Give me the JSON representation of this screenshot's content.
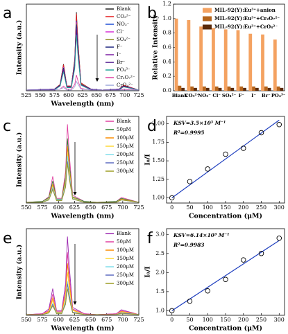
{
  "chart_data": [
    {
      "type": "line",
      "panel": "a",
      "x_label": "Wavelength (nm)",
      "y_label": "Intensity (a.u.)",
      "xlim": [
        525,
        725
      ],
      "xticks": [
        525,
        550,
        575,
        600,
        625,
        650,
        675,
        700,
        725
      ],
      "ylim": [
        0,
        110
      ],
      "x": [
        525,
        575,
        585,
        591,
        597,
        605,
        611,
        614,
        617,
        622,
        640,
        660,
        690,
        698,
        725
      ],
      "series": [
        {
          "name": "Blank",
          "color": "#222222",
          "values": [
            1,
            2,
            8,
            34,
            6,
            6,
            40,
            100,
            60,
            10,
            2,
            1,
            2,
            7,
            1
          ]
        },
        {
          "name": "CO₃²⁻",
          "color": "#e41a1c",
          "values": [
            1,
            2,
            8,
            33,
            6,
            6,
            39,
            98,
            59,
            10,
            2,
            1,
            2,
            7,
            1
          ]
        },
        {
          "name": "NO₃⁻",
          "color": "#1f4fd6",
          "values": [
            1,
            2,
            7,
            30,
            5,
            5,
            36,
            89,
            53,
            9,
            2,
            1,
            2,
            6,
            1
          ]
        },
        {
          "name": "Cl⁻",
          "color": "#d62fd6",
          "values": [
            1,
            2,
            7,
            30,
            5,
            5,
            35,
            87,
            52,
            9,
            2,
            1,
            2,
            6,
            1
          ]
        },
        {
          "name": "SO₄²⁻",
          "color": "#8a8a1a",
          "values": [
            1,
            2,
            7,
            29,
            5,
            5,
            34,
            85,
            51,
            9,
            2,
            1,
            2,
            6,
            1
          ]
        },
        {
          "name": "F⁻",
          "color": "#1a237e",
          "values": [
            1,
            2,
            7,
            29,
            5,
            5,
            34,
            84,
            50,
            8,
            2,
            1,
            2,
            6,
            1
          ]
        },
        {
          "name": "I⁻",
          "color": "#7b1fa2",
          "values": [
            1,
            2,
            6,
            27,
            5,
            5,
            32,
            79,
            47,
            8,
            2,
            1,
            2,
            6,
            1
          ]
        },
        {
          "name": "Br⁻",
          "color": "#4a148c",
          "values": [
            1,
            2,
            6,
            27,
            5,
            5,
            31,
            78,
            47,
            8,
            2,
            1,
            2,
            5,
            1
          ]
        },
        {
          "name": "PO₄³⁻",
          "color": "#26a69a",
          "values": [
            1,
            1,
            6,
            24,
            4,
            4,
            28,
            71,
            43,
            7,
            1,
            1,
            1,
            5,
            1
          ]
        },
        {
          "name": "Cr₂O₇²⁻",
          "color": "#e040a0",
          "values": [
            1,
            1,
            2,
            6,
            2,
            2,
            8,
            20,
            12,
            3,
            1,
            1,
            1,
            2,
            1
          ]
        },
        {
          "name": "CrO₄²⁻",
          "color": "#9fa8da",
          "values": [
            1,
            1,
            2,
            4,
            1,
            1,
            5,
            12,
            8,
            2,
            1,
            1,
            1,
            1,
            1
          ]
        }
      ]
    },
    {
      "type": "bar",
      "panel": "b",
      "y_label": "Relative Intensity",
      "categories": [
        "Blank",
        "CO₃²⁻",
        "NO₃⁻",
        "Cl⁻",
        "SO₄²⁻",
        "F⁻",
        "I⁻",
        "Br⁻",
        "PO₄³⁻"
      ],
      "ylim": [
        0,
        1.2
      ],
      "yticks": [
        {
          "value": 0,
          "label": "0.0"
        },
        0.2,
        0.4,
        0.6,
        0.8,
        {
          "value": 1,
          "label": "1.0"
        },
        1.2
      ],
      "series": [
        {
          "name": "MIL-92(Y):Eu³⁺+anion",
          "color": "#f4a261",
          "values": [
            1.0,
            0.98,
            0.89,
            0.87,
            0.85,
            0.84,
            0.79,
            0.78,
            0.71
          ]
        },
        {
          "name": "MIL-92(Y):Eu³⁺+Cr₂O₇²⁻",
          "color": "#b5651d",
          "values": [
            0.07,
            0.06,
            0.06,
            0.06,
            0.06,
            0.06,
            0.06,
            0.06,
            0.06
          ]
        },
        {
          "name": "MIL-92(Y):Eu³⁺+CrO₄²⁻",
          "color": "#5a2a0a",
          "values": [
            0.04,
            0.04,
            0.04,
            0.04,
            0.04,
            0.04,
            0.04,
            0.04,
            0.04
          ]
        }
      ]
    },
    {
      "type": "line",
      "panel": "c",
      "x_label": "Wavelength (nm)",
      "y_label": "Intensity (a.u.)",
      "xlim": [
        550,
        725
      ],
      "xticks": [
        550,
        575,
        600,
        625,
        650,
        675,
        700,
        725
      ],
      "ylim": [
        0,
        110
      ],
      "x": [
        550,
        575,
        585,
        591,
        597,
        605,
        611,
        614,
        617,
        622,
        640,
        660,
        690,
        698,
        725
      ],
      "series": [
        {
          "name": "Blank",
          "color": "#e040a0",
          "values": [
            1,
            2,
            8,
            34,
            6,
            6,
            40,
            100,
            60,
            10,
            2,
            1,
            2,
            7,
            1
          ]
        },
        {
          "name": "50μM",
          "color": "#2e7d32",
          "values": [
            1,
            2,
            7,
            28,
            5,
            5,
            33,
            82,
            49,
            8,
            2,
            1,
            2,
            6,
            1
          ]
        },
        {
          "name": "100μM",
          "color": "#fb8c00",
          "values": [
            1,
            1,
            6,
            24,
            4,
            4,
            29,
            72,
            43,
            7,
            1,
            1,
            1,
            5,
            1
          ]
        },
        {
          "name": "150μM",
          "color": "#fdd835",
          "values": [
            1,
            1,
            5,
            21,
            4,
            4,
            25,
            63,
            38,
            6,
            1,
            1,
            1,
            4,
            1
          ]
        },
        {
          "name": "200μM",
          "color": "#80deea",
          "values": [
            1,
            1,
            5,
            20,
            4,
            4,
            24,
            60,
            36,
            6,
            1,
            1,
            1,
            4,
            1
          ]
        },
        {
          "name": "250μM",
          "color": "#5c6bc0",
          "values": [
            1,
            1,
            4,
            18,
            3,
            3,
            21,
            53,
            32,
            5,
            1,
            1,
            1,
            4,
            1
          ]
        },
        {
          "name": "300μM",
          "color": "#9e9d24",
          "values": [
            1,
            1,
            4,
            17,
            3,
            3,
            20,
            50,
            30,
            5,
            1,
            1,
            1,
            4,
            1
          ]
        }
      ]
    },
    {
      "type": "scatter",
      "panel": "d",
      "x_label": "Concentration (μM)",
      "y_label": "I₀/I",
      "annotations": [
        "KSV=3.5×10³ M⁻¹",
        "R²=0.9995"
      ],
      "xlim": [
        -15,
        315
      ],
      "xticks": [
        0,
        50,
        100,
        150,
        200,
        250,
        300
      ],
      "ylim": [
        0.93,
        2.1
      ],
      "yticks": [
        {
          "value": 1,
          "label": "1.00"
        },
        1.25,
        {
          "value": 1.5,
          "label": "1.50"
        },
        1.75,
        {
          "value": 2,
          "label": "2.00"
        }
      ],
      "x": [
        0,
        50,
        100,
        150,
        200,
        250,
        300
      ],
      "values": [
        1.0,
        1.22,
        1.39,
        1.59,
        1.67,
        1.88,
        1.99
      ],
      "fit": {
        "color": "#1f3fbf",
        "x": [
          0,
          300
        ],
        "y": [
          1.0,
          2.05
        ]
      }
    },
    {
      "type": "line",
      "panel": "e",
      "x_label": "Wavelength (nm)",
      "y_label": "Intensity (a.u.)",
      "xlim": [
        550,
        725
      ],
      "xticks": [
        550,
        575,
        600,
        625,
        650,
        675,
        700,
        725
      ],
      "ylim": [
        0,
        110
      ],
      "x": [
        550,
        575,
        585,
        591,
        597,
        605,
        611,
        614,
        617,
        622,
        640,
        660,
        690,
        698,
        725
      ],
      "series": [
        {
          "name": "Blank",
          "color": "#9c27b0",
          "values": [
            1,
            2,
            8,
            34,
            6,
            6,
            40,
            100,
            60,
            10,
            2,
            1,
            2,
            7,
            1
          ]
        },
        {
          "name": "50μM",
          "color": "#e040a0",
          "values": [
            1,
            2,
            6,
            27,
            5,
            5,
            32,
            80,
            48,
            8,
            2,
            1,
            2,
            6,
            1
          ]
        },
        {
          "name": "100μM",
          "color": "#fb8c00",
          "values": [
            1,
            1,
            5,
            22,
            4,
            4,
            26,
            66,
            40,
            7,
            1,
            1,
            1,
            5,
            1
          ]
        },
        {
          "name": "150μM",
          "color": "#fdd835",
          "values": [
            1,
            1,
            4,
            19,
            3,
            3,
            22,
            55,
            33,
            6,
            1,
            1,
            1,
            4,
            1
          ]
        },
        {
          "name": "200μM",
          "color": "#80deea",
          "values": [
            1,
            1,
            3,
            15,
            3,
            3,
            17,
            43,
            26,
            4,
            1,
            1,
            1,
            3,
            1
          ]
        },
        {
          "name": "250μM",
          "color": "#5c6bc0",
          "values": [
            1,
            1,
            3,
            14,
            2,
            2,
            16,
            40,
            24,
            4,
            1,
            1,
            1,
            3,
            1
          ]
        },
        {
          "name": "300μM",
          "color": "#9e9d24",
          "values": [
            1,
            1,
            3,
            12,
            2,
            2,
            14,
            34,
            20,
            3,
            1,
            1,
            1,
            2,
            1
          ]
        }
      ]
    },
    {
      "type": "scatter",
      "panel": "f",
      "x_label": "Concentration (μM)",
      "y_label": "I₀/I",
      "annotations": [
        "KSV=6.14×10³ M⁻¹",
        "R²=0.9983"
      ],
      "xlim": [
        -15,
        315
      ],
      "xticks": [
        0,
        50,
        100,
        150,
        200,
        250,
        300
      ],
      "ylim": [
        0.88,
        3.15
      ],
      "yticks": [
        {
          "value": 1,
          "label": "1.0"
        },
        1.5,
        {
          "value": 2,
          "label": "2.0"
        },
        2.5,
        {
          "value": 3,
          "label": "3.0"
        }
      ],
      "x": [
        0,
        50,
        100,
        150,
        200,
        250,
        300
      ],
      "values": [
        1.0,
        1.25,
        1.52,
        1.82,
        2.33,
        2.5,
        2.9
      ],
      "fit": {
        "color": "#1f3fbf",
        "x": [
          0,
          300
        ],
        "y": [
          1.0,
          2.84
        ]
      }
    }
  ]
}
